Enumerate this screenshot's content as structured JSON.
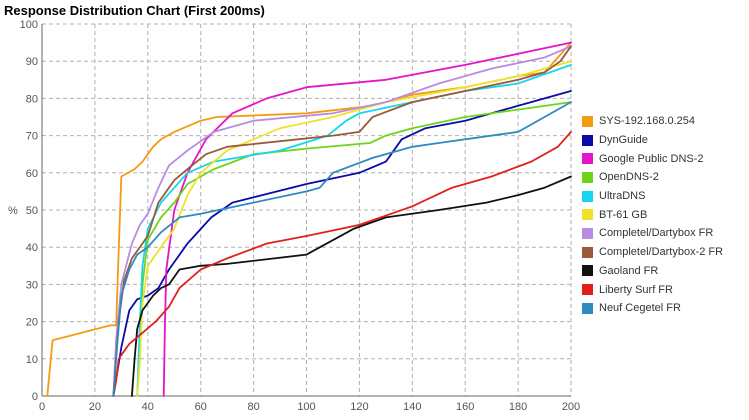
{
  "chart_data": {
    "type": "line",
    "title": "Response Distribution Chart (First 200ms)",
    "xlabel": "",
    "ylabel": "%",
    "xlim": [
      0,
      200
    ],
    "ylim": [
      0,
      100
    ],
    "x_ticks": [
      0,
      20,
      40,
      60,
      80,
      100,
      120,
      140,
      160,
      180,
      200
    ],
    "y_ticks": [
      0,
      10,
      20,
      30,
      40,
      50,
      60,
      70,
      80,
      90,
      100
    ],
    "grid": true,
    "legend_position": "right",
    "series": [
      {
        "name": "SYS-192.168.0.254",
        "color": "#f39c12",
        "points": [
          [
            2,
            0
          ],
          [
            4,
            15
          ],
          [
            26,
            19
          ],
          [
            28,
            19
          ],
          [
            30,
            59
          ],
          [
            35,
            61
          ],
          [
            38,
            63
          ],
          [
            42,
            67
          ],
          [
            45,
            69
          ],
          [
            50,
            71
          ],
          [
            60,
            74
          ],
          [
            66,
            75
          ],
          [
            100,
            76
          ],
          [
            125,
            78
          ],
          [
            140,
            81
          ],
          [
            160,
            83
          ],
          [
            180,
            86
          ],
          [
            190,
            87
          ],
          [
            200,
            95
          ]
        ]
      },
      {
        "name": "DynGuide",
        "color": "#0a0aa8",
        "points": [
          [
            27,
            0
          ],
          [
            30,
            13
          ],
          [
            33,
            23
          ],
          [
            36,
            26
          ],
          [
            40,
            27
          ],
          [
            44,
            29
          ],
          [
            48,
            34
          ],
          [
            55,
            41
          ],
          [
            64,
            48
          ],
          [
            72,
            52
          ],
          [
            100,
            57
          ],
          [
            120,
            60
          ],
          [
            130,
            63
          ],
          [
            136,
            69
          ],
          [
            145,
            72
          ],
          [
            160,
            74
          ],
          [
            180,
            78
          ],
          [
            200,
            82
          ]
        ]
      },
      {
        "name": "Google Public DNS-2",
        "color": "#e614c8",
        "points": [
          [
            46,
            0
          ],
          [
            46.5,
            20
          ],
          [
            47,
            34
          ],
          [
            50,
            50
          ],
          [
            55,
            60
          ],
          [
            62,
            69
          ],
          [
            72,
            76
          ],
          [
            85,
            80
          ],
          [
            100,
            83
          ],
          [
            130,
            85
          ],
          [
            160,
            89
          ],
          [
            180,
            92
          ],
          [
            200,
            95
          ]
        ]
      },
      {
        "name": "OpenDNS-2",
        "color": "#6ed41a",
        "points": [
          [
            36,
            0
          ],
          [
            37,
            10
          ],
          [
            38,
            30
          ],
          [
            40,
            42
          ],
          [
            45,
            48
          ],
          [
            50,
            52
          ],
          [
            55,
            57
          ],
          [
            65,
            61
          ],
          [
            80,
            65
          ],
          [
            100,
            66.5
          ],
          [
            124,
            68
          ],
          [
            130,
            70
          ],
          [
            140,
            72
          ],
          [
            160,
            75
          ],
          [
            180,
            77
          ],
          [
            200,
            79
          ]
        ]
      },
      {
        "name": "UltraDNS",
        "color": "#16d5ee",
        "points": [
          [
            36,
            0
          ],
          [
            37,
            20
          ],
          [
            38,
            35
          ],
          [
            40,
            45
          ],
          [
            45,
            52
          ],
          [
            50,
            56
          ],
          [
            55,
            60
          ],
          [
            65,
            63
          ],
          [
            90,
            66
          ],
          [
            108,
            70
          ],
          [
            115,
            74
          ],
          [
            120,
            76
          ],
          [
            140,
            79
          ],
          [
            160,
            82
          ],
          [
            180,
            84
          ],
          [
            200,
            89
          ]
        ]
      },
      {
        "name": "BT-61 GB",
        "color": "#f0e12a",
        "points": [
          [
            36,
            0
          ],
          [
            37,
            10
          ],
          [
            38,
            25
          ],
          [
            40,
            35
          ],
          [
            45,
            40
          ],
          [
            50,
            45
          ],
          [
            55,
            54
          ],
          [
            60,
            60
          ],
          [
            70,
            66
          ],
          [
            90,
            72
          ],
          [
            110,
            75
          ],
          [
            130,
            79
          ],
          [
            160,
            83
          ],
          [
            180,
            86
          ],
          [
            200,
            90
          ]
        ]
      },
      {
        "name": "Completel/Dartybox FR",
        "color": "#b88ce0",
        "points": [
          [
            27,
            0
          ],
          [
            28,
            15
          ],
          [
            30,
            30
          ],
          [
            34,
            41
          ],
          [
            37,
            46
          ],
          [
            40,
            49
          ],
          [
            44,
            56
          ],
          [
            48,
            62
          ],
          [
            55,
            66
          ],
          [
            65,
            71
          ],
          [
            80,
            74
          ],
          [
            110,
            76
          ],
          [
            130,
            79
          ],
          [
            150,
            84
          ],
          [
            170,
            88
          ],
          [
            190,
            91
          ],
          [
            200,
            94
          ]
        ]
      },
      {
        "name": "Completel/Dartybox-2 FR",
        "color": "#9a5a3a",
        "points": [
          [
            27,
            0
          ],
          [
            29,
            20
          ],
          [
            31,
            31
          ],
          [
            34,
            37
          ],
          [
            40,
            43
          ],
          [
            44,
            52
          ],
          [
            50,
            58
          ],
          [
            55,
            61
          ],
          [
            62,
            65
          ],
          [
            70,
            67
          ],
          [
            110,
            70
          ],
          [
            120,
            71
          ],
          [
            125,
            75
          ],
          [
            140,
            79
          ],
          [
            160,
            82
          ],
          [
            180,
            85
          ],
          [
            190,
            87
          ],
          [
            196,
            90
          ],
          [
            200,
            94
          ]
        ]
      },
      {
        "name": "Gaoland FR",
        "color": "#111111",
        "points": [
          [
            34,
            0
          ],
          [
            35,
            10
          ],
          [
            36,
            18
          ],
          [
            38,
            23
          ],
          [
            42,
            27
          ],
          [
            45,
            29
          ],
          [
            48,
            30
          ],
          [
            52,
            34
          ],
          [
            60,
            35
          ],
          [
            70,
            35.5
          ],
          [
            100,
            38
          ],
          [
            118,
            45
          ],
          [
            130,
            48
          ],
          [
            150,
            50
          ],
          [
            168,
            52
          ],
          [
            180,
            54
          ],
          [
            190,
            56
          ],
          [
            200,
            59
          ]
        ]
      },
      {
        "name": "Liberty Surf FR",
        "color": "#e0201a",
        "points": [
          [
            27,
            0
          ],
          [
            28,
            4
          ],
          [
            29,
            10
          ],
          [
            33,
            14
          ],
          [
            38,
            17
          ],
          [
            43,
            20
          ],
          [
            48,
            24
          ],
          [
            52,
            29
          ],
          [
            60,
            34
          ],
          [
            70,
            37
          ],
          [
            85,
            41
          ],
          [
            100,
            43
          ],
          [
            120,
            46
          ],
          [
            140,
            51
          ],
          [
            155,
            56
          ],
          [
            170,
            59
          ],
          [
            185,
            63
          ],
          [
            195,
            67
          ],
          [
            200,
            71
          ]
        ]
      },
      {
        "name": "Neuf Cegetel FR",
        "color": "#2e8ac0",
        "points": [
          [
            27,
            0
          ],
          [
            28,
            10
          ],
          [
            30,
            27
          ],
          [
            33,
            34
          ],
          [
            36,
            38
          ],
          [
            40,
            40
          ],
          [
            45,
            44
          ],
          [
            52,
            48
          ],
          [
            60,
            49
          ],
          [
            80,
            52
          ],
          [
            100,
            55
          ],
          [
            105,
            56
          ],
          [
            110,
            60
          ],
          [
            125,
            64
          ],
          [
            140,
            67
          ],
          [
            150,
            68
          ],
          [
            180,
            71
          ],
          [
            200,
            79
          ]
        ]
      }
    ]
  }
}
